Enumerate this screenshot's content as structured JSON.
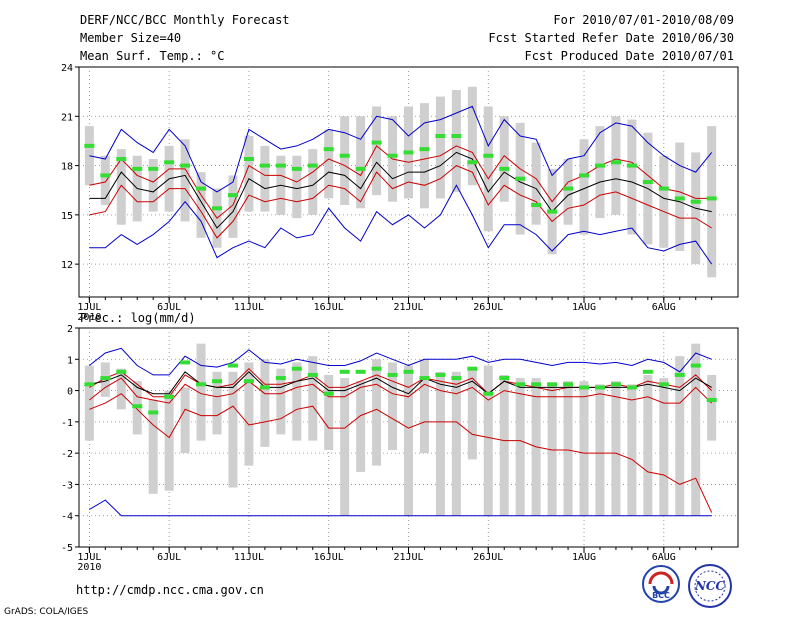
{
  "header": {
    "title": "DERF/NCC/BCC Monthly Forecast",
    "member": "Member Size=40",
    "variable": "Mean Surf. Temp.: °C",
    "period": "For 2010/07/01-2010/08/09",
    "started": "Fcst Started Refer Date 2010/06/30",
    "produced": "Fcst Produced Date 2010/07/01"
  },
  "footer": {
    "url": "http://cmdp.ncc.cma.gov.cn",
    "grads": "GrADS: COLA/IGES",
    "logo_bcc": "BCC",
    "logo_ncc": "NCC"
  },
  "colors": {
    "max_min": "#0000cc",
    "pct": "#cc0000",
    "mean": "#000000",
    "obs": "#33dd33",
    "box": "#cfcfcf",
    "grid": "#888888"
  },
  "chart_data": [
    {
      "type": "line",
      "title": "Mean Surf. Temp.: °C",
      "xlabel": "",
      "ylabel": "",
      "ylim": [
        10,
        24
      ],
      "yticks": [
        12,
        15,
        18,
        21,
        24
      ],
      "xticks": [
        {
          "day": 1,
          "label": "1JUL"
        },
        {
          "day": 6,
          "label": "6JUL"
        },
        {
          "day": 11,
          "label": "11JUL"
        },
        {
          "day": 16,
          "label": "16JUL"
        },
        {
          "day": 21,
          "label": "21JUL"
        },
        {
          "day": 26,
          "label": "26JUL"
        },
        {
          "day": 32,
          "label": "1AUG"
        },
        {
          "day": 37,
          "label": "6AUG"
        }
      ],
      "year_label": "2010",
      "grid": true,
      "days": [
        1,
        2,
        3,
        4,
        5,
        6,
        7,
        8,
        9,
        10,
        11,
        12,
        13,
        14,
        15,
        16,
        17,
        18,
        19,
        20,
        21,
        22,
        23,
        24,
        25,
        26,
        27,
        28,
        29,
        30,
        31,
        32,
        33,
        34,
        35,
        36,
        37,
        38,
        39,
        40
      ],
      "series": [
        {
          "name": "max",
          "values": [
            13.0,
            13.0,
            13.8,
            13.2,
            13.8,
            14.6,
            15.8,
            14.6,
            12.4,
            13.0,
            13.4,
            13.0,
            14.2,
            13.6,
            13.8,
            15.4,
            14.2,
            13.4,
            15.2,
            14.4,
            15.0,
            14.2,
            15.0,
            16.8,
            15.0,
            13.0,
            14.4,
            14.4,
            13.8,
            12.8,
            13.8,
            14.0,
            13.8,
            14.0,
            14.2,
            13.0,
            12.8,
            13.2,
            13.4,
            12.0
          ]
        },
        {
          "name": "min_blue_top",
          "values": [
            18.6,
            18.4,
            20.2,
            19.4,
            18.8,
            20.2,
            19.2,
            17.0,
            16.4,
            17.0,
            20.2,
            19.6,
            19.0,
            19.2,
            19.6,
            20.2,
            20.0,
            19.6,
            21.0,
            20.8,
            19.8,
            20.6,
            20.8,
            21.2,
            21.6,
            19.2,
            20.8,
            19.8,
            19.6,
            17.4,
            18.4,
            18.6,
            20.0,
            20.6,
            20.4,
            19.4,
            18.6,
            18.0,
            17.6,
            18.8
          ]
        },
        {
          "name": "p75",
          "values": [
            16.8,
            17.0,
            18.4,
            17.4,
            17.0,
            17.8,
            17.8,
            16.2,
            14.8,
            15.6,
            18.0,
            17.4,
            17.4,
            17.0,
            17.6,
            18.4,
            18.0,
            17.4,
            19.2,
            18.4,
            18.2,
            18.4,
            18.6,
            19.2,
            18.8,
            17.2,
            18.6,
            17.8,
            17.2,
            15.8,
            17.0,
            17.4,
            18.0,
            18.4,
            18.2,
            17.4,
            16.6,
            16.4,
            16.0,
            16.0
          ]
        },
        {
          "name": "mean",
          "values": [
            16.0,
            16.0,
            17.6,
            16.6,
            16.4,
            17.2,
            17.4,
            15.8,
            14.2,
            15.2,
            17.2,
            16.6,
            16.8,
            16.6,
            16.8,
            17.6,
            17.4,
            16.6,
            18.2,
            17.2,
            17.6,
            17.6,
            18.0,
            18.8,
            18.4,
            16.4,
            17.6,
            17.0,
            16.6,
            15.2,
            16.2,
            16.6,
            17.0,
            17.2,
            17.0,
            16.6,
            16.0,
            15.8,
            15.4,
            15.2
          ]
        },
        {
          "name": "p25",
          "values": [
            15.0,
            15.2,
            16.8,
            15.8,
            15.8,
            16.6,
            16.6,
            15.2,
            13.6,
            14.6,
            16.2,
            15.8,
            16.0,
            15.8,
            16.0,
            16.8,
            16.6,
            15.8,
            17.6,
            16.6,
            17.0,
            16.8,
            17.2,
            18.0,
            17.6,
            15.6,
            16.8,
            16.2,
            15.8,
            14.6,
            15.4,
            15.6,
            16.2,
            16.4,
            16.0,
            15.6,
            15.2,
            14.8,
            14.8,
            14.2
          ]
        }
      ],
      "boxes": [
        {
          "low": 16.8,
          "high": 20.4
        },
        {
          "low": 15.6,
          "high": 18.6
        },
        {
          "low": 14.4,
          "high": 19.0
        },
        {
          "low": 14.6,
          "high": 18.6
        },
        {
          "low": 15.2,
          "high": 18.4
        },
        {
          "low": 15.2,
          "high": 19.2
        },
        {
          "low": 14.6,
          "high": 19.6
        },
        {
          "low": 13.6,
          "high": 17.6
        },
        {
          "low": 13.0,
          "high": 16.6
        },
        {
          "low": 13.6,
          "high": 17.4
        },
        {
          "low": 15.2,
          "high": 19.8
        },
        {
          "low": 15.2,
          "high": 19.2
        },
        {
          "low": 15.0,
          "high": 18.6
        },
        {
          "low": 14.8,
          "high": 18.6
        },
        {
          "low": 15.0,
          "high": 19.0
        },
        {
          "low": 16.0,
          "high": 20.2
        },
        {
          "low": 15.6,
          "high": 21.0
        },
        {
          "low": 15.4,
          "high": 21.0
        },
        {
          "low": 16.2,
          "high": 21.6
        },
        {
          "low": 15.8,
          "high": 21.0
        },
        {
          "low": 16.0,
          "high": 21.6
        },
        {
          "low": 15.4,
          "high": 21.8
        },
        {
          "low": 16.0,
          "high": 22.2
        },
        {
          "low": 16.4,
          "high": 22.6
        },
        {
          "low": 16.8,
          "high": 22.8
        },
        {
          "low": 14.0,
          "high": 21.6
        },
        {
          "low": 15.8,
          "high": 21.0
        },
        {
          "low": 13.8,
          "high": 20.6
        },
        {
          "low": 14.4,
          "high": 19.4
        },
        {
          "low": 12.6,
          "high": 17.8
        },
        {
          "low": 14.4,
          "high": 18.4
        },
        {
          "low": 13.8,
          "high": 19.6
        },
        {
          "low": 14.8,
          "high": 20.4
        },
        {
          "low": 15.0,
          "high": 21.0
        },
        {
          "low": 13.8,
          "high": 20.8
        },
        {
          "low": 13.2,
          "high": 20.0
        },
        {
          "low": 13.0,
          "high": 18.6
        },
        {
          "low": 12.8,
          "high": 19.4
        },
        {
          "low": 12.0,
          "high": 18.8
        },
        {
          "low": 11.2,
          "high": 20.4
        }
      ],
      "obs": [
        19.2,
        17.4,
        18.4,
        17.8,
        17.8,
        18.2,
        18.0,
        16.6,
        15.4,
        16.2,
        18.4,
        18.0,
        18.0,
        17.8,
        18.0,
        19.0,
        18.6,
        17.8,
        19.4,
        18.6,
        18.8,
        19.0,
        19.8,
        19.8,
        18.2,
        18.6,
        17.8,
        17.2,
        15.6,
        15.2,
        16.6,
        17.4,
        18.0,
        18.2,
        18.0,
        17.0,
        16.6,
        16.0,
        15.8,
        16.0
      ]
    },
    {
      "type": "line",
      "title": "Prec.: log(mm/d)",
      "xlabel": "",
      "ylabel": "",
      "ylim": [
        -5,
        2
      ],
      "yticks": [
        -5,
        -4,
        -3,
        -2,
        -1,
        0,
        1,
        2
      ],
      "xticks": [
        {
          "day": 1,
          "label": "1JUL"
        },
        {
          "day": 6,
          "label": "6JUL"
        },
        {
          "day": 11,
          "label": "11JUL"
        },
        {
          "day": 16,
          "label": "16JUL"
        },
        {
          "day": 21,
          "label": "21JUL"
        },
        {
          "day": 26,
          "label": "26JUL"
        },
        {
          "day": 32,
          "label": "1AUG"
        },
        {
          "day": 37,
          "label": "6AUG"
        }
      ],
      "year_label": "2010",
      "grid": true,
      "days": [
        1,
        2,
        3,
        4,
        5,
        6,
        7,
        8,
        9,
        10,
        11,
        12,
        13,
        14,
        15,
        16,
        17,
        18,
        19,
        20,
        21,
        22,
        23,
        24,
        25,
        26,
        27,
        28,
        29,
        30,
        31,
        32,
        33,
        34,
        35,
        36,
        37,
        38,
        39,
        40
      ],
      "series": [
        {
          "name": "max",
          "values": [
            0.8,
            1.2,
            1.35,
            0.8,
            0.5,
            0.5,
            1.1,
            0.8,
            0.75,
            0.9,
            1.3,
            0.9,
            0.85,
            1.0,
            0.9,
            0.8,
            0.8,
            0.95,
            1.2,
            1.0,
            0.8,
            1.0,
            1.0,
            1.0,
            1.1,
            0.9,
            1.0,
            1.0,
            0.9,
            0.8,
            0.9,
            0.9,
            0.85,
            0.9,
            0.8,
            1.0,
            0.9,
            0.6,
            1.2,
            1.0
          ]
        },
        {
          "name": "p75",
          "values": [
            0.1,
            0.4,
            0.6,
            0.2,
            -0.2,
            -0.2,
            0.5,
            0.2,
            0.1,
            0.2,
            0.7,
            0.2,
            0.2,
            0.3,
            0.5,
            0.1,
            0.1,
            0.3,
            0.5,
            0.3,
            0.1,
            0.4,
            0.3,
            0.2,
            0.4,
            -0.1,
            0.3,
            0.2,
            0.1,
            0.0,
            0.1,
            0.1,
            0.1,
            0.2,
            0.1,
            0.3,
            0.2,
            0.1,
            0.5,
            0.0
          ]
        },
        {
          "name": "mean",
          "values": [
            0.2,
            0.3,
            0.5,
            0.1,
            -0.1,
            -0.1,
            0.6,
            0.2,
            0.1,
            0.1,
            0.6,
            0.1,
            0.1,
            0.3,
            0.4,
            0.0,
            0.0,
            0.2,
            0.4,
            0.1,
            -0.1,
            0.4,
            0.2,
            0.1,
            0.3,
            -0.1,
            0.3,
            0.1,
            0.1,
            0.1,
            0.1,
            0.1,
            0.1,
            0.1,
            0.1,
            0.2,
            0.1,
            0.0,
            0.4,
            0.1
          ]
        },
        {
          "name": "p25",
          "values": [
            -0.3,
            0.1,
            0.4,
            -0.2,
            -0.3,
            -0.4,
            0.2,
            -0.1,
            -0.2,
            -0.1,
            0.3,
            -0.1,
            -0.1,
            0.1,
            0.2,
            -0.2,
            -0.2,
            0.1,
            0.2,
            -0.1,
            -0.2,
            0.2,
            0.0,
            -0.1,
            0.1,
            -0.3,
            0.0,
            -0.1,
            -0.2,
            -0.2,
            -0.2,
            -0.2,
            -0.1,
            -0.2,
            -0.3,
            -0.2,
            -0.4,
            -0.4,
            0.1,
            -0.4
          ]
        },
        {
          "name": "min_red",
          "values": [
            -0.6,
            -0.4,
            -0.1,
            -0.6,
            -1.1,
            -1.5,
            -0.6,
            -0.8,
            -0.8,
            -0.5,
            -1.1,
            -1.0,
            -0.9,
            -0.6,
            -0.5,
            -1.2,
            -1.2,
            -0.8,
            -0.6,
            -0.9,
            -1.2,
            -1.0,
            -1.0,
            -1.0,
            -1.4,
            -1.5,
            -1.6,
            -1.6,
            -1.8,
            -1.9,
            -1.9,
            -2.0,
            -2.0,
            -2.0,
            -2.2,
            -2.6,
            -2.7,
            -3.0,
            -2.8,
            -3.9
          ]
        },
        {
          "name": "min_blue",
          "values": [
            -3.8,
            -3.5,
            -4.0,
            -4.0,
            -4.0,
            -4.0,
            -4.0,
            -4.0,
            -4.0,
            -4.0,
            -4.0,
            -4.0,
            -4.0,
            -4.0,
            -4.0,
            -4.0,
            -4.0,
            -4.0,
            -4.0,
            -4.0,
            -4.0,
            -4.0,
            -4.0,
            -4.0,
            -4.0,
            -4.0,
            -4.0,
            -4.0,
            -4.0,
            -4.0,
            -4.0,
            -4.0,
            -4.0,
            -4.0,
            -4.0,
            -4.0,
            -4.0,
            -4.0,
            -4.0,
            -4.0
          ]
        }
      ],
      "boxes": [
        {
          "low": -1.6,
          "high": 0.8
        },
        {
          "low": -0.2,
          "high": 0.9
        },
        {
          "low": -0.6,
          "high": 0.7
        },
        {
          "low": -1.4,
          "high": 0.3
        },
        {
          "low": -3.3,
          "high": -0.3
        },
        {
          "low": -3.2,
          "high": 0.0
        },
        {
          "low": -2.0,
          "high": 0.1
        },
        {
          "low": -1.6,
          "high": 1.5
        },
        {
          "low": -1.4,
          "high": 0.6
        },
        {
          "low": -3.1,
          "high": 0.6
        },
        {
          "low": -2.4,
          "high": 0.9
        },
        {
          "low": -1.8,
          "high": 1.0
        },
        {
          "low": -1.4,
          "high": 0.7
        },
        {
          "low": -1.6,
          "high": 0.9
        },
        {
          "low": -1.6,
          "high": 1.1
        },
        {
          "low": -1.9,
          "high": 0.5
        },
        {
          "low": -4.0,
          "high": 0.4
        },
        {
          "low": -2.6,
          "high": 0.3
        },
        {
          "low": -2.4,
          "high": 1.0
        },
        {
          "low": -1.9,
          "high": 0.9
        },
        {
          "low": -4.0,
          "high": 0.8
        },
        {
          "low": -2.0,
          "high": 1.0
        },
        {
          "low": -4.0,
          "high": 0.6
        },
        {
          "low": -4.0,
          "high": 0.6
        },
        {
          "low": -2.2,
          "high": 0.7
        },
        {
          "low": -4.0,
          "high": 0.8
        },
        {
          "low": -4.0,
          "high": 0.5
        },
        {
          "low": -4.0,
          "high": 0.4
        },
        {
          "low": -4.0,
          "high": 0.4
        },
        {
          "low": -4.0,
          "high": 0.2
        },
        {
          "low": -4.0,
          "high": 0.3
        },
        {
          "low": -4.0,
          "high": 0.3
        },
        {
          "low": -4.0,
          "high": 0.2
        },
        {
          "low": -4.0,
          "high": 0.3
        },
        {
          "low": -4.0,
          "high": 0.2
        },
        {
          "low": -4.0,
          "high": 0.5
        },
        {
          "low": -4.0,
          "high": 0.4
        },
        {
          "low": -4.0,
          "high": 1.1
        },
        {
          "low": -4.0,
          "high": 1.5
        },
        {
          "low": -1.6,
          "high": 0.5
        }
      ],
      "obs": [
        0.2,
        0.4,
        0.6,
        -0.5,
        -0.7,
        -0.2,
        0.9,
        0.2,
        0.3,
        0.8,
        0.3,
        0.1,
        0.4,
        0.7,
        0.5,
        -0.1,
        0.6,
        0.6,
        0.7,
        0.5,
        0.6,
        0.4,
        0.5,
        0.4,
        0.7,
        -0.1,
        0.4,
        0.2,
        0.2,
        0.2,
        0.2,
        0.1,
        0.1,
        0.2,
        0.1,
        0.6,
        0.2,
        0.5,
        0.8,
        -0.3
      ]
    }
  ]
}
